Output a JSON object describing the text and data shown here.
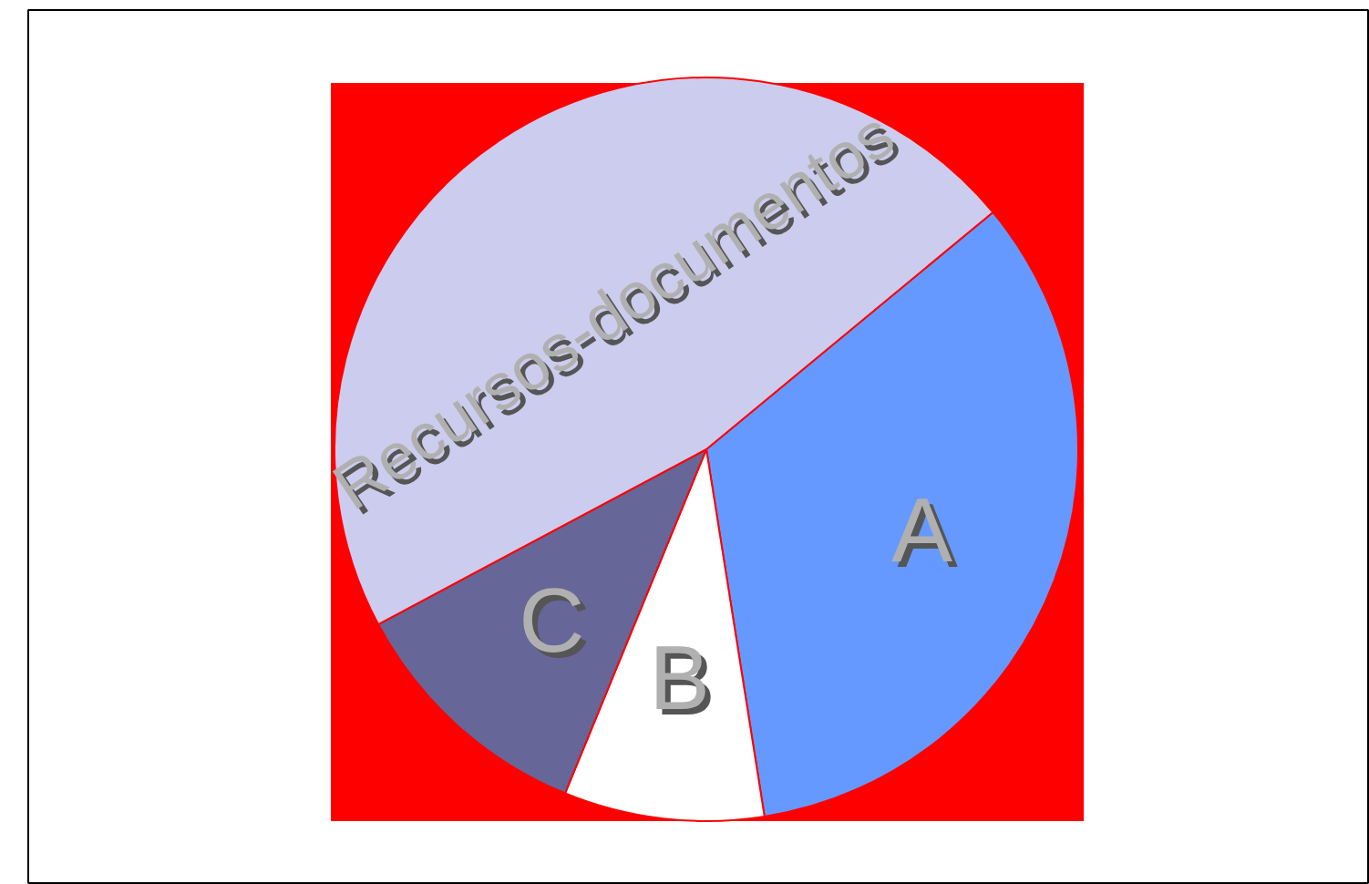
{
  "chart_data": {
    "type": "pie",
    "categories": [
      "A",
      "B",
      "C",
      "Recursos-documentos"
    ],
    "values": [
      33.5,
      8.7,
      11.0,
      46.8
    ],
    "colors": [
      "#6699ff",
      "#ffffff",
      "#666699",
      "#ccccee"
    ]
  }
}
